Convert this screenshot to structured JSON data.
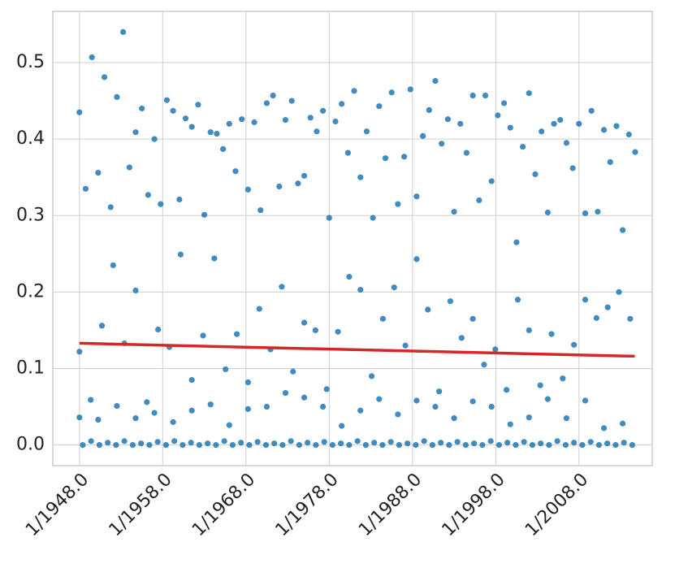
{
  "chart_data": {
    "type": "scatter",
    "color": "#1f77b4",
    "x": [
      1948,
      1948.75,
      1949.5,
      1950.25,
      1951,
      1951.75,
      1952.5,
      1953.25,
      1954,
      1954.75,
      1955.5,
      1956.25,
      1957,
      1957.75,
      1958.5,
      1959.25,
      1960,
      1960.75,
      1961.5,
      1962.25,
      1963,
      1963.75,
      1964.5,
      1965.25,
      1966,
      1966.75,
      1967.5,
      1968.25,
      1969,
      1969.75,
      1970.5,
      1971.25,
      1972,
      1972.75,
      1973.5,
      1974.25,
      1975,
      1975.75,
      1976.5,
      1977.25,
      1978,
      1978.75,
      1979.5,
      1980.25,
      1981,
      1981.75,
      1982.5,
      1983.25,
      1984,
      1984.75,
      1985.5,
      1986.25,
      1987,
      1987.75,
      1988.5,
      1989.25,
      1990,
      1990.75,
      1991.5,
      1992.25,
      1993,
      1993.75,
      1994.5,
      1995.25,
      1996,
      1996.75,
      1997.5,
      1998.25,
      1999,
      1999.75,
      2000.5,
      2001.25,
      2002,
      2002.75,
      2003.5,
      2004.25,
      2005,
      2005.75,
      2006.5,
      2007.25,
      2008,
      2008.75,
      2009.5,
      2010.25,
      2011,
      2011.75,
      2012.5,
      2013.25,
      2014,
      2014.75,
      1948,
      1949.35,
      1950.7,
      1952.05,
      1953.4,
      1954.75,
      1956.1,
      1957.45,
      1958.8,
      1960.15,
      1961.5,
      1962.85,
      1964.2,
      1965.55,
      1966.9,
      1968.25,
      1969.6,
      1970.95,
      1972.3,
      1973.65,
      1975,
      1976.35,
      1977.7,
      1979.05,
      1980.4,
      1981.75,
      1983.1,
      1984.45,
      1985.8,
      1987.15,
      1988.5,
      1989.85,
      1991.2,
      1992.55,
      1993.9,
      1995.25,
      1996.6,
      1997.95,
      1999.3,
      2000.65,
      2002,
      2003.35,
      2004.7,
      2006.05,
      2007.4,
      2008.75,
      2010.1,
      2011.45,
      2012.8,
      2014.15,
      1948,
      1950.25,
      1952.5,
      1954.75,
      1957,
      1959.25,
      1961.5,
      1963.75,
      1966,
      1968.25,
      1970.5,
      1972.75,
      1975,
      1977.25,
      1979.5,
      1981.75,
      1984,
      1986.25,
      1988.5,
      1990.75,
      1993,
      1995.25,
      1997.5,
      1999.75,
      2002,
      2004.25,
      2006.5,
      2008.75,
      2011,
      2013.25,
      1948.4,
      1949.4,
      1950.4,
      1951.4,
      1952.4,
      1953.4,
      1954.4,
      1955.4,
      1956.4,
      1957.4,
      1958.4,
      1959.4,
      1960.4,
      1961.4,
      1962.4,
      1963.4,
      1964.4,
      1965.4,
      1966.4,
      1967.4,
      1968.4,
      1969.4,
      1970.4,
      1971.4,
      1972.4,
      1973.4,
      1974.4,
      1975.4,
      1976.4,
      1977.4,
      1978.4,
      1979.4,
      1980.4,
      1981.4,
      1982.4,
      1983.4,
      1984.4,
      1985.4,
      1986.4,
      1987.4,
      1988.4,
      1989.4,
      1990.4,
      1991.4,
      1992.4,
      1993.4,
      1994.4,
      1995.4,
      1996.4,
      1997.4,
      1998.4,
      1999.4,
      2000.4,
      2001.4,
      2002.4,
      2003.4,
      2004.4,
      2005.4,
      2006.4,
      2007.4,
      2008.4,
      2009.4,
      2010.4,
      2011.4,
      2012.4,
      2013.4,
      2014.4
    ],
    "values": [
      0.435,
      0.335,
      0.507,
      0.356,
      0.481,
      0.311,
      0.455,
      0.54,
      0.363,
      0.409,
      0.44,
      0.327,
      0.4,
      0.315,
      0.451,
      0.437,
      0.321,
      0.427,
      0.416,
      0.445,
      0.301,
      0.409,
      0.407,
      0.387,
      0.42,
      0.358,
      0.426,
      0.334,
      0.422,
      0.307,
      0.447,
      0.457,
      0.338,
      0.425,
      0.45,
      0.342,
      0.352,
      0.428,
      0.41,
      0.437,
      0.297,
      0.423,
      0.446,
      0.382,
      0.463,
      0.35,
      0.41,
      0.297,
      0.443,
      0.375,
      0.461,
      0.315,
      0.377,
      0.465,
      0.325,
      0.404,
      0.438,
      0.476,
      0.394,
      0.426,
      0.305,
      0.42,
      0.382,
      0.457,
      0.32,
      0.457,
      0.345,
      0.431,
      0.447,
      0.415,
      0.265,
      0.39,
      0.46,
      0.354,
      0.41,
      0.304,
      0.42,
      0.425,
      0.395,
      0.362,
      0.42,
      0.303,
      0.437,
      0.305,
      0.412,
      0.37,
      0.417,
      0.281,
      0.406,
      0.383,
      0.122,
      0.059,
      0.156,
      0.235,
      0.133,
      0.202,
      0.056,
      0.151,
      0.128,
      0.249,
      0.085,
      0.143,
      0.244,
      0.099,
      0.145,
      0.082,
      0.178,
      0.125,
      0.207,
      0.096,
      0.16,
      0.15,
      0.073,
      0.148,
      0.22,
      0.203,
      0.09,
      0.165,
      0.206,
      0.13,
      0.243,
      0.177,
      0.07,
      0.188,
      0.14,
      0.165,
      0.105,
      0.125,
      0.072,
      0.19,
      0.15,
      0.078,
      0.145,
      0.087,
      0.131,
      0.19,
      0.166,
      0.18,
      0.2,
      0.165,
      0.036,
      0.033,
      0.051,
      0.035,
      0.042,
      0.03,
      0.045,
      0.053,
      0.026,
      0.047,
      0.05,
      0.068,
      0.062,
      0.05,
      0.025,
      0.045,
      0.06,
      0.04,
      0.058,
      0.05,
      0.035,
      0.057,
      0.05,
      0.027,
      0.036,
      0.06,
      0.035,
      0.058,
      0.022,
      0.028,
      0,
      0.005,
      0,
      0.003,
      0,
      0.005,
      0,
      0.002,
      0,
      0.004,
      0,
      0.005,
      0,
      0.003,
      0,
      0.002,
      0,
      0.005,
      0,
      0.003,
      0,
      0.004,
      0,
      0.002,
      0,
      0.005,
      0,
      0.003,
      0,
      0.004,
      0,
      0.002,
      0,
      0.005,
      0,
      0.003,
      0,
      0.004,
      0,
      0.002,
      0,
      0.005,
      0,
      0.003,
      0,
      0.004,
      0,
      0.002,
      0,
      0.005,
      0,
      0.003,
      0,
      0.004,
      0,
      0.002,
      0,
      0.005,
      0,
      0.003,
      0,
      0.004,
      0,
      0.002,
      0,
      0.003,
      0
    ],
    "trend_line": {
      "x": [
        1948,
        2014.7
      ],
      "y": [
        0.133,
        0.116
      ],
      "color": "#d62728"
    },
    "xlim": [
      1944.8,
      2016.8
    ],
    "xticks": [
      {
        "value": 1948,
        "label": "1/1948.0"
      },
      {
        "value": 1958,
        "label": "1/1958.0"
      },
      {
        "value": 1968,
        "label": "1/1968.0"
      },
      {
        "value": 1978,
        "label": "1/1978.0"
      },
      {
        "value": 1988,
        "label": "1/1988.0"
      },
      {
        "value": 1998,
        "label": "1/1998.0"
      },
      {
        "value": 2008,
        "label": "1/2008.0"
      }
    ],
    "ylim": [
      -0.027,
      0.567
    ],
    "yticks": [
      {
        "value": 0,
        "label": "0.0"
      },
      0.1,
      0.2,
      0.3,
      0.4,
      0.5
    ],
    "grid": true
  }
}
